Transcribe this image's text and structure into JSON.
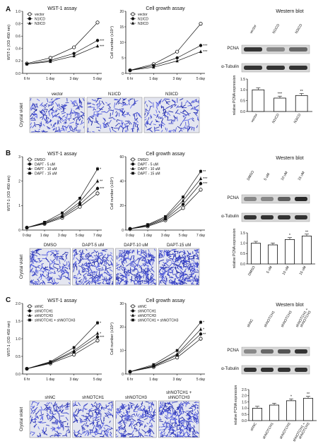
{
  "panels": [
    {
      "letter": "A",
      "wst": {
        "title": "WST-1 assay",
        "ylabel": "WST-1 (OD 450 nm)",
        "x": [
          "6 hr",
          "1 day",
          "3 day",
          "5 day"
        ],
        "ylim": [
          0,
          1.0
        ],
        "yticks": [
          "0.0",
          "0.2",
          "0.4",
          "0.6",
          "0.8",
          "1.0"
        ],
        "legend": [
          "vector",
          "N1ICD",
          "N3ICD"
        ],
        "series": [
          {
            "name": "vector",
            "values": [
              0.16,
              0.25,
              0.42,
              0.82
            ]
          },
          {
            "name": "N1ICD",
            "values": [
              0.15,
              0.21,
              0.32,
              0.53
            ]
          },
          {
            "name": "N3ICD",
            "values": [
              0.15,
              0.19,
              0.28,
              0.44
            ]
          }
        ],
        "sig": [
          "***",
          "***"
        ]
      },
      "growth": {
        "title": "Cell growth assay",
        "ylabel": "Cell number (x10⁴)",
        "x": [
          "6 hr",
          "1 day",
          "3 day",
          "5 day"
        ],
        "ylim": [
          0,
          20
        ],
        "yticks": [
          "0",
          "5",
          "10",
          "15",
          "20"
        ],
        "legend": [
          "vector",
          "N1ICD",
          "N3ICD"
        ],
        "series": [
          {
            "name": "vector",
            "values": [
              1,
              3,
              7,
              16
            ]
          },
          {
            "name": "N1ICD",
            "values": [
              1,
              2.5,
              5,
              9
            ]
          },
          {
            "name": "N3ICD",
            "values": [
              1,
              2,
              4,
              7
            ]
          }
        ],
        "sig": [
          "***",
          "***"
        ]
      },
      "blot": {
        "title": "Western blot",
        "lanes": [
          "vector",
          "N1ICD",
          "N3ICD"
        ],
        "rows": [
          "PCNA",
          "α-Tubulin"
        ],
        "pcna_intensity": [
          0.85,
          0.45,
          0.6
        ]
      },
      "bar": {
        "ylabel": "relative PCNA expression",
        "categories": [
          "vector",
          "N1ICD",
          "N3ICD"
        ],
        "values": [
          1.0,
          0.62,
          0.74
        ],
        "ylim": [
          0,
          1.5
        ],
        "yticks": [
          "0.0",
          "0.5",
          "1.0",
          "1.5"
        ],
        "sig": [
          "",
          "***",
          "**"
        ]
      },
      "crystal": {
        "label": "Crystal violet",
        "labels": [
          "vector",
          "N1ICD",
          "N3ICD"
        ],
        "density": [
          0.55,
          0.35,
          0.4
        ]
      }
    },
    {
      "letter": "B",
      "wst": {
        "title": "WST-1 assay",
        "ylabel": "WST-1 (OD 450 nm)",
        "x": [
          "0 day",
          "1 day",
          "3 day",
          "5 day",
          "7 day"
        ],
        "ylim": [
          0,
          3
        ],
        "yticks": [
          "0",
          "1",
          "2",
          "3"
        ],
        "legend": [
          "DMSO",
          "DAPT - 5 uM",
          "DAPT - 10 uM",
          "DAPT - 15 uM"
        ],
        "series": [
          {
            "name": "DMSO",
            "values": [
              0.1,
              0.25,
              0.5,
              0.95,
              1.5
            ]
          },
          {
            "name": "DAPT - 5 uM",
            "values": [
              0.1,
              0.27,
              0.55,
              1.05,
              1.7
            ]
          },
          {
            "name": "DAPT - 10 uM",
            "values": [
              0.1,
              0.3,
              0.6,
              1.15,
              2.0
            ]
          },
          {
            "name": "DAPT - 15 uM",
            "values": [
              0.1,
              0.32,
              0.7,
              1.3,
              2.5
            ]
          }
        ],
        "sig": [
          "***",
          "**",
          "*"
        ]
      },
      "growth": {
        "title": "Cell growth assay",
        "ylabel": "Cell number (x10⁴)",
        "x": [
          "0 day",
          "1 day",
          "3 day",
          "5 day",
          "7 day"
        ],
        "ylim": [
          0,
          60
        ],
        "yticks": [
          "0",
          "20",
          "40",
          "60"
        ],
        "legend": [
          "DMSO",
          "DAPT - 5 uM",
          "DAPT - 10 uM",
          "DAPT - 15 uM"
        ],
        "series": [
          {
            "name": "DMSO",
            "values": [
              1,
              3,
              8,
              18,
              33
            ]
          },
          {
            "name": "DAPT - 5 uM",
            "values": [
              1,
              3.5,
              9,
              21,
              38
            ]
          },
          {
            "name": "DAPT - 10 uM",
            "values": [
              1,
              4,
              10,
              24,
              42
            ]
          },
          {
            "name": "DAPT - 15 uM",
            "values": [
              1,
              4.5,
              11,
              27,
              48
            ]
          }
        ],
        "sig": [
          "***",
          "***",
          "**"
        ]
      },
      "blot": {
        "title": "Western blot",
        "lanes": [
          "DMSO",
          "5 uM",
          "10 uM",
          "15 uM"
        ],
        "rows": [
          "PCNA",
          "α-Tubulin"
        ],
        "pcna_intensity": [
          0.45,
          0.45,
          0.65,
          0.9
        ]
      },
      "bar": {
        "ylabel": "relative PCNA expression",
        "categories": [
          "DMSO",
          "5 uM",
          "10 uM",
          "15 uM"
        ],
        "values": [
          1.0,
          0.92,
          1.18,
          1.35
        ],
        "ylim": [
          0,
          1.5
        ],
        "yticks": [
          "0.0",
          "0.5",
          "1.0",
          "1.5"
        ],
        "sig": [
          "",
          "",
          "*",
          "**"
        ]
      },
      "crystal": {
        "label": "Crystal violet",
        "labels": [
          "DMSO",
          "DAPT-5 uM",
          "DAPT-10 uM",
          "DAPT-15 uM"
        ],
        "density": [
          0.45,
          0.6,
          0.8,
          1.0
        ]
      }
    },
    {
      "letter": "C",
      "wst": {
        "title": "WST-1 assay",
        "ylabel": "WST-1 (OD 450 nm)",
        "x": [
          "6 hr",
          "1 day",
          "3 day",
          "5 day"
        ],
        "ylim": [
          0,
          2.0
        ],
        "yticks": [
          "0.0",
          "0.5",
          "1.0",
          "1.5",
          "2.0"
        ],
        "legend": [
          "shNC",
          "shNOTCH1",
          "shNOTCH3",
          "shNOTCH1 + shNOTCH3"
        ],
        "series": [
          {
            "name": "shNC",
            "values": [
              0.15,
              0.3,
              0.55,
              0.95
            ]
          },
          {
            "name": "shNOTCH1",
            "values": [
              0.15,
              0.32,
              0.62,
              1.05
            ]
          },
          {
            "name": "shNOTCH3",
            "values": [
              0.15,
              0.33,
              0.66,
              1.15
            ]
          },
          {
            "name": "shNOTCH1 + shNOTCH3",
            "values": [
              0.15,
              0.35,
              0.75,
              1.45
            ]
          }
        ],
        "sig": [
          "***",
          "*",
          "*"
        ]
      },
      "growth": {
        "title": "Cell growth assay",
        "ylabel": "Cell number (x10⁴)",
        "x": [
          "6 hr",
          "1 day",
          "3 day",
          "5 day"
        ],
        "ylim": [
          0,
          30
        ],
        "yticks": [
          "0",
          "10",
          "20",
          "30"
        ],
        "legend": [
          "shNC",
          "shNOTCH1",
          "shNOTCH3",
          "shNOTCH1 + shNOTCH3"
        ],
        "series": [
          {
            "name": "shNC",
            "values": [
              1,
              3,
              7,
              15
            ]
          },
          {
            "name": "shNOTCH1",
            "values": [
              1,
              3.3,
              8,
              17
            ]
          },
          {
            "name": "shNOTCH3",
            "values": [
              1,
              3.5,
              8.5,
              19
            ]
          },
          {
            "name": "shNOTCH1 + shNOTCH3",
            "values": [
              1,
              4,
              10,
              22
            ]
          }
        ],
        "sig": [
          "**",
          "*",
          "*"
        ]
      },
      "blot": {
        "title": "Western blot",
        "lanes": [
          "shNC",
          "shNOTCH1",
          "shNOTCH3",
          "shNOTCH1 + shNOTCH3"
        ],
        "rows": [
          "PCNA",
          "α-Tubulin"
        ],
        "pcna_intensity": [
          0.45,
          0.6,
          0.7,
          0.85
        ]
      },
      "bar": {
        "ylabel": "relative PCNA expression",
        "categories": [
          "shNC",
          "shNOTCH1",
          "shNOTCH3",
          "shNOTCH1 + shNOTCH3"
        ],
        "values": [
          1.0,
          1.25,
          1.6,
          1.8
        ],
        "ylim": [
          0,
          2.5
        ],
        "yticks": [
          "0.0",
          "0.5",
          "1.0",
          "1.5",
          "2.0",
          "2.5"
        ],
        "sig": [
          "",
          "",
          "*",
          "**"
        ]
      },
      "crystal": {
        "label": "Crystal violet",
        "labels": [
          "shNC",
          "shNOTCH1",
          "shNOTCH3",
          "shNOTCH1 + shNOTCH3"
        ],
        "density": [
          0.35,
          0.45,
          0.6,
          0.85
        ]
      }
    }
  ]
}
